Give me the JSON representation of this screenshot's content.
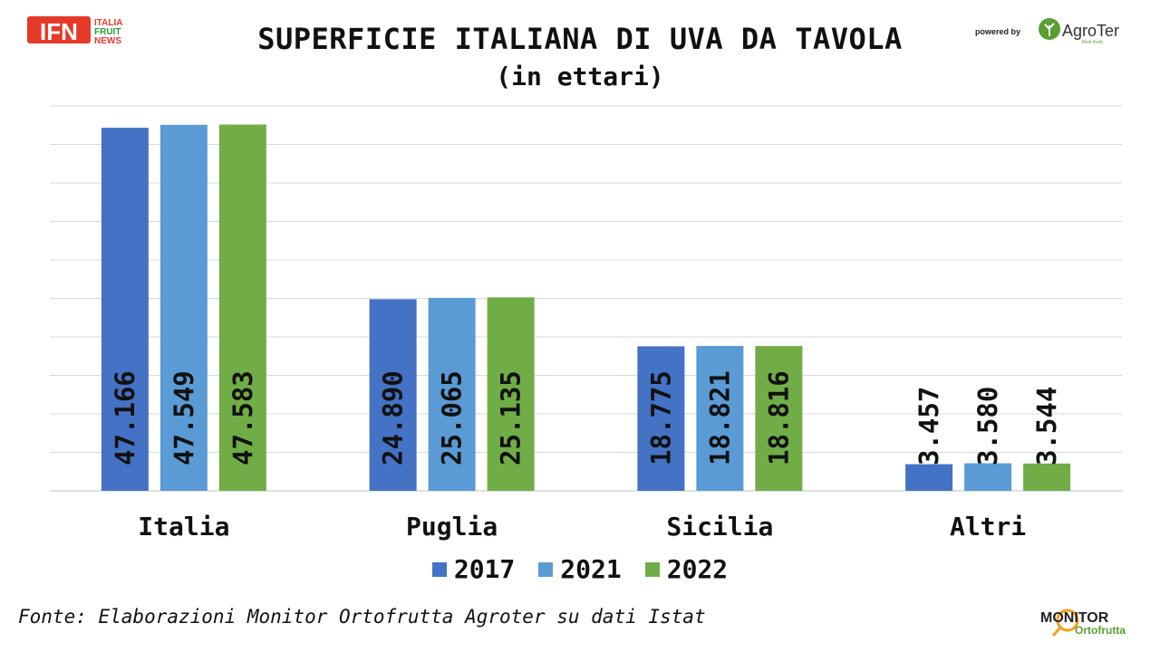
{
  "header": {
    "title": "SUPERFICIE ITALIANA DI UVA DA TAVOLA",
    "subtitle": "(in ettari)",
    "ifn_logo": {
      "big": "IFN",
      "line1": "ITALIA",
      "line2": "FRUIT",
      "line3": "NEWS"
    },
    "agroter_logo": {
      "powered": "powered by",
      "name": "AgroTer",
      "tagline": "think fresh"
    }
  },
  "footer": {
    "source": "Fonte: Elaborazioni Monitor Ortofrutta Agroter su dati Istat",
    "monitor_logo": {
      "line1": "MONITOR",
      "line2": "Ortofrutta"
    }
  },
  "chart_data": {
    "type": "bar",
    "title": "SUPERFICIE ITALIANA DI UVA DA TAVOLA",
    "subtitle": "(in ettari)",
    "categories": [
      "Italia",
      "Puglia",
      "Sicilia",
      "Altri"
    ],
    "series": [
      {
        "name": "2017",
        "color": "#4472C4",
        "values": [
          47166,
          24890,
          18775,
          3457
        ],
        "labels": [
          "47.166",
          "24.890",
          "18.775",
          "3.457"
        ]
      },
      {
        "name": "2021",
        "color": "#5B9BD5",
        "values": [
          47549,
          25065,
          18821,
          3580
        ],
        "labels": [
          "47.549",
          "25.065",
          "18.821",
          "3.580"
        ]
      },
      {
        "name": "2022",
        "color": "#70AD47",
        "values": [
          47583,
          25135,
          18816,
          3544
        ],
        "labels": [
          "47.583",
          "25.135",
          "18.816",
          "3.544"
        ]
      }
    ],
    "ylim": [
      0,
      50000
    ],
    "grid": true,
    "legend": "bottom"
  }
}
